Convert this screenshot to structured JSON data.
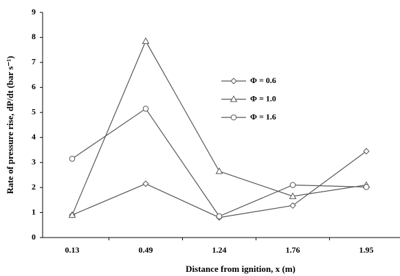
{
  "chart_data": {
    "type": "line",
    "x_label": "Distance from ignition, x (m)",
    "y_label": "Rate of pressure rise, dP/dt (bar s⁻¹)",
    "categories": [
      "0.13",
      "0.49",
      "1.24",
      "1.76",
      "1.95"
    ],
    "series": [
      {
        "name": "Φ = 0.6",
        "color": "#555555",
        "marker": "diamond",
        "values": [
          0.9,
          2.15,
          0.8,
          1.28,
          3.45
        ]
      },
      {
        "name": "Φ = 1.0",
        "color": "#555555",
        "marker": "triangle",
        "values": [
          0.9,
          7.85,
          2.65,
          1.65,
          2.1
        ]
      },
      {
        "name": "Φ = 1.6",
        "color": "#555555",
        "marker": "circle",
        "values": [
          3.15,
          5.15,
          0.85,
          2.1,
          2.02
        ]
      }
    ],
    "ylim": [
      0,
      9
    ],
    "yticks": [
      0,
      1,
      2,
      3,
      4,
      5,
      6,
      7,
      8,
      9
    ],
    "grid": false,
    "legend": "center"
  }
}
